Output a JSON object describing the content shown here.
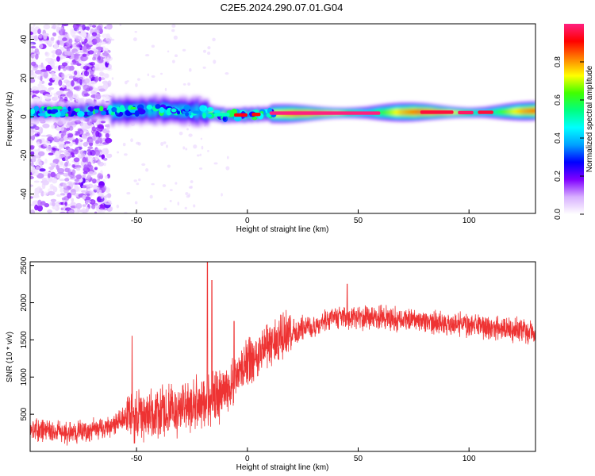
{
  "title": "C2E5.2024.290.07.01.G04",
  "chart_data": [
    {
      "type": "heatmap",
      "xlabel": "Height of straight line (km)",
      "ylabel": "Frequency (Hz)",
      "xlim": [
        -98,
        130
      ],
      "ylim": [
        -50,
        48
      ],
      "xticks": [
        -50,
        0,
        50,
        100
      ],
      "yticks": [
        40,
        20,
        0,
        -20,
        -40
      ],
      "colorbar": {
        "label": "Normalized spectral amplitude",
        "range": [
          0,
          1
        ],
        "ticks": [
          "0.0",
          "0.2",
          "0.4",
          "0.6",
          "0.8"
        ],
        "tick_values": [
          0,
          0.2,
          0.4,
          0.6,
          0.8
        ],
        "colors": [
          "#ffffff",
          "#d8b0ff",
          "#8000ff",
          "#0000ff",
          "#00a0ff",
          "#00ffff",
          "#00ff80",
          "#40ff00",
          "#ffff00",
          "#ff8000",
          "#ff0000",
          "#ff2080"
        ]
      },
      "ridge": [
        {
          "x": -98,
          "f": 2.5
        },
        {
          "x": -60,
          "f": 3
        },
        {
          "x": -40,
          "f": 3.5
        },
        {
          "x": -20,
          "f": 2.5
        },
        {
          "x": -10,
          "f": 0.5
        },
        {
          "x": 0,
          "f": 1
        },
        {
          "x": 10,
          "f": 1.5
        },
        {
          "x": 50,
          "f": 2
        },
        {
          "x": 80,
          "f": 2.5
        },
        {
          "x": 100,
          "f": 2
        },
        {
          "x": 130,
          "f": 3
        }
      ]
    },
    {
      "type": "line",
      "xlabel": "Height of straight line (km)",
      "ylabel": "SNR (10 * v/v)",
      "xlim": [
        -98,
        130
      ],
      "ylim": [
        0,
        2550
      ],
      "xticks": [
        -50,
        0,
        50,
        100
      ],
      "yticks": [
        500,
        1000,
        1500,
        2000,
        2500
      ],
      "color": "#ee3333",
      "trend": [
        {
          "x": -98,
          "y": 300
        },
        {
          "x": -80,
          "y": 250
        },
        {
          "x": -65,
          "y": 300
        },
        {
          "x": -55,
          "y": 450
        },
        {
          "x": -40,
          "y": 500
        },
        {
          "x": -25,
          "y": 600
        },
        {
          "x": -10,
          "y": 800
        },
        {
          "x": 0,
          "y": 1200
        },
        {
          "x": 10,
          "y": 1450
        },
        {
          "x": 25,
          "y": 1650
        },
        {
          "x": 40,
          "y": 1800
        },
        {
          "x": 60,
          "y": 1800
        },
        {
          "x": 80,
          "y": 1750
        },
        {
          "x": 100,
          "y": 1700
        },
        {
          "x": 130,
          "y": 1600
        }
      ],
      "peaks": [
        {
          "x": -18,
          "y": 2550
        },
        {
          "x": -16,
          "y": 2300
        },
        {
          "x": -52,
          "y": 1550
        },
        {
          "x": -6,
          "y": 1750
        },
        {
          "x": 45,
          "y": 2250
        }
      ]
    }
  ]
}
